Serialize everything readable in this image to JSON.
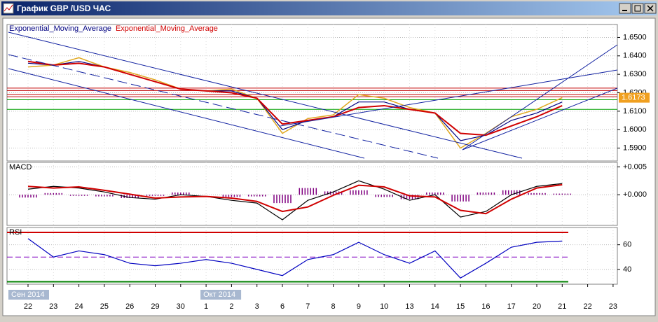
{
  "window": {
    "title": "График GBP /USD ЧАС"
  },
  "chart_data": [
    {
      "type": "line",
      "categories": [
        "22",
        "23",
        "24",
        "25",
        "26",
        "29",
        "30",
        "1",
        "2",
        "3",
        "6",
        "7",
        "8",
        "9",
        "10",
        "13",
        "14",
        "15",
        "16",
        "17",
        "20",
        "21",
        "22",
        "23"
      ],
      "month_labels": [
        "Сен 2014",
        null,
        null,
        null,
        null,
        null,
        null,
        "Окт 2014",
        null,
        null,
        null,
        null,
        null,
        null,
        null,
        null,
        null,
        null,
        null,
        null,
        null,
        null,
        null,
        null
      ],
      "series": [
        {
          "color": "#e0a820",
          "values": [
            1.634,
            1.635,
            1.639,
            1.634,
            1.631,
            1.627,
            1.622,
            1.621,
            1.622,
            1.617,
            1.598,
            1.606,
            1.608,
            1.619,
            1.617,
            1.612,
            1.609,
            1.59,
            1.598,
            1.607,
            1.611,
            1.6173,
            null,
            null
          ]
        },
        {
          "name": "Exponential_Moving_Average",
          "color": "#000080",
          "values": [
            1.636,
            1.635,
            1.637,
            1.634,
            1.63,
            1.626,
            1.622,
            1.621,
            1.621,
            1.617,
            1.6,
            1.605,
            1.607,
            1.615,
            1.615,
            1.611,
            1.609,
            1.594,
            1.597,
            1.605,
            1.609,
            1.615,
            null,
            null
          ]
        },
        {
          "name": "Exponential_Moving_Average",
          "color": "#d00000",
          "values": [
            1.637,
            1.635,
            1.636,
            1.634,
            1.63,
            1.626,
            1.622,
            1.621,
            1.62,
            1.617,
            1.603,
            1.605,
            1.607,
            1.612,
            1.613,
            1.611,
            1.609,
            1.598,
            1.597,
            1.602,
            1.607,
            1.613,
            null,
            null
          ]
        }
      ],
      "levels": [
        {
          "value": 1.6225,
          "color": "#c00000"
        },
        {
          "value": 1.6212,
          "color": "#c00000"
        },
        {
          "value": 1.619,
          "color": "#c00000"
        },
        {
          "value": 1.6178,
          "color": "#c00000"
        },
        {
          "value": 1.6162,
          "color": "#00a000"
        },
        {
          "value": 1.611,
          "color": "#00a000"
        }
      ],
      "ylim": [
        1.583,
        1.657
      ],
      "yticks": [
        {
          "value": 1.65,
          "label": "1.6500"
        },
        {
          "value": 1.64,
          "label": "1.6400"
        },
        {
          "value": 1.63,
          "label": "1.6300"
        },
        {
          "value": 1.62,
          "label": "1.6200"
        },
        {
          "value": 1.61,
          "label": "1.6100"
        },
        {
          "value": 1.6,
          "label": "1.6000"
        },
        {
          "value": 1.59,
          "label": "1.5900"
        }
      ],
      "grid": true
    },
    {
      "type": "macd",
      "title": "MACD",
      "series": [
        {
          "kind": "bar",
          "color": "#800080",
          "values": [
            -0.0005,
            0.0003,
            -0.0002,
            -0.0003,
            -0.0006,
            -0.0002,
            0.0004,
            0.0,
            -0.0004,
            -0.0003,
            -0.0015,
            0.0012,
            0.0006,
            0.0008,
            -0.0004,
            -0.0008,
            0.0004,
            -0.0012,
            0.0004,
            0.0008,
            0.0003,
            0.0002,
            null,
            null
          ]
        },
        {
          "kind": "line",
          "color": "#000000",
          "values": [
            0.001,
            0.0015,
            0.0012,
            0.0005,
            -0.0005,
            -0.0008,
            0.0,
            -0.0003,
            -0.001,
            -0.0015,
            -0.0045,
            -0.001,
            0.0005,
            0.0025,
            0.001,
            -0.001,
            0.0,
            -0.004,
            -0.003,
            0.0,
            0.0015,
            0.002,
            null,
            null
          ]
        },
        {
          "kind": "line",
          "color": "#d00000",
          "values": [
            0.0015,
            0.0012,
            0.0014,
            0.0008,
            0.0001,
            -0.0006,
            -0.0004,
            -0.0003,
            -0.0006,
            -0.0012,
            -0.003,
            -0.0022,
            -0.0001,
            0.0017,
            0.0014,
            -0.0002,
            -0.0004,
            -0.0028,
            -0.0034,
            -0.0008,
            0.0012,
            0.0018,
            null,
            null
          ]
        }
      ],
      "ylim": [
        -0.0055,
        0.0058
      ],
      "yticks": [
        {
          "value": 0.005,
          "label": "+0.005"
        },
        {
          "value": 0,
          "label": "+0.000"
        }
      ],
      "grid": true
    },
    {
      "type": "line",
      "title": "RSI",
      "series": [
        {
          "color": "#0000c0",
          "values": [
            65,
            50,
            55,
            52,
            45,
            43,
            45,
            48,
            45,
            40,
            35,
            48,
            52,
            62,
            52,
            45,
            55,
            33,
            45,
            58,
            62,
            63,
            null,
            null
          ]
        }
      ],
      "levels": [
        {
          "value": 70,
          "color": "#d00000"
        },
        {
          "value": 50,
          "color": "#8000c0",
          "dash": true
        },
        {
          "value": 30,
          "color": "#008000"
        }
      ],
      "ylim": [
        28,
        74
      ],
      "yticks": [
        60,
        40
      ],
      "grid": true
    }
  ]
}
